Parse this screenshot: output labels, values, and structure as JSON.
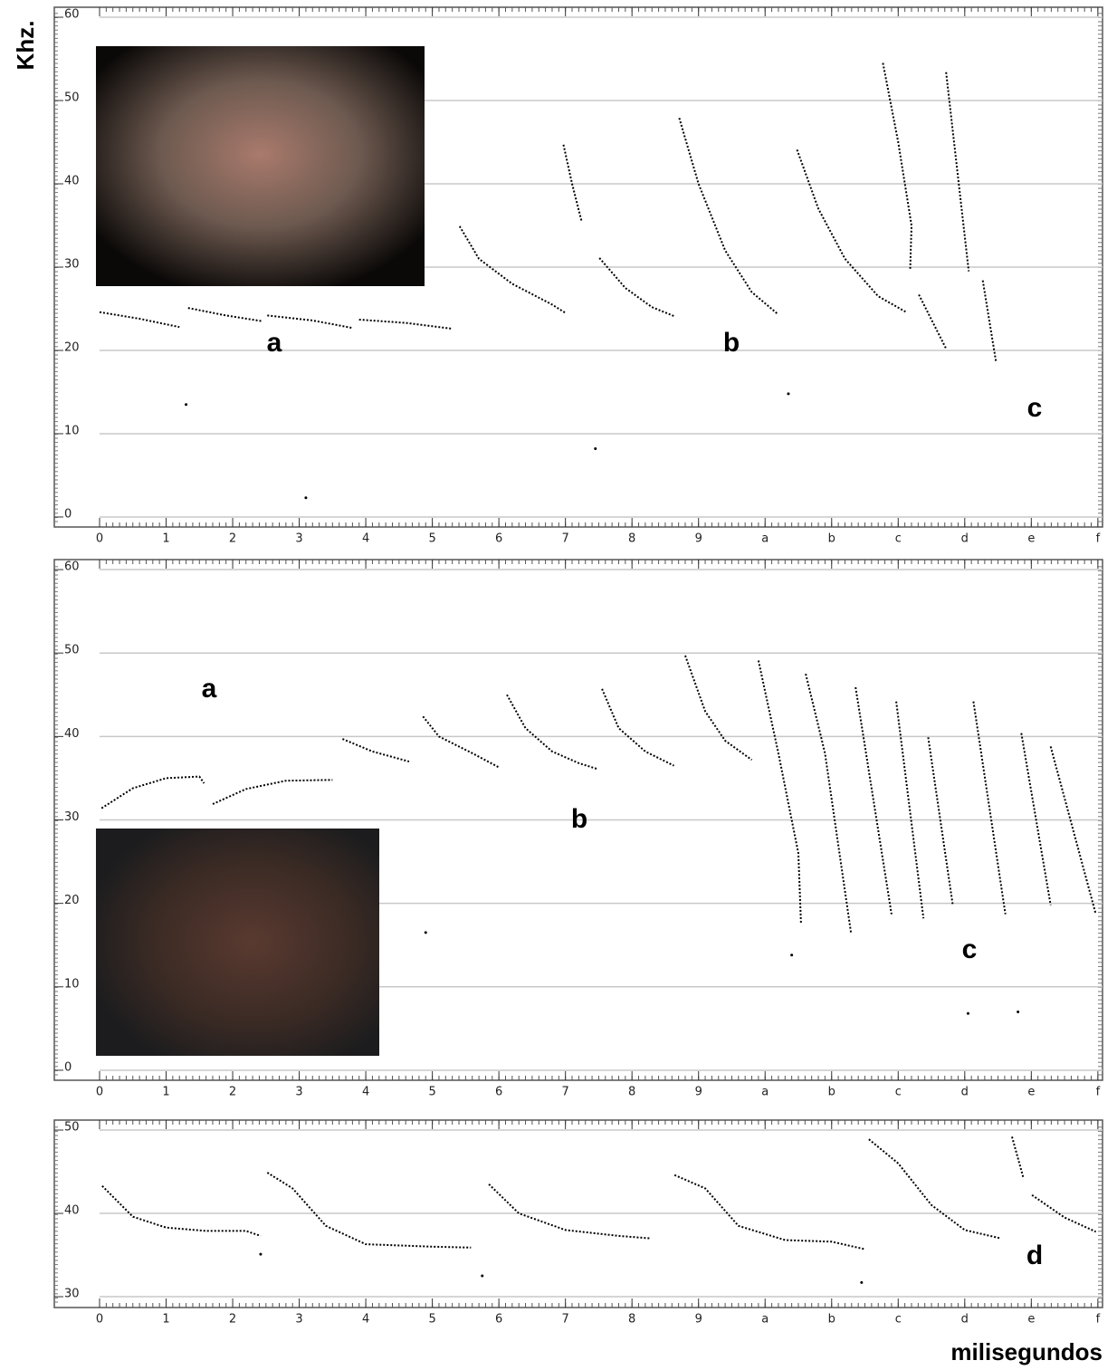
{
  "chart_data": [
    {
      "type": "line",
      "ylabel": "Khz.",
      "color": "#000000",
      "grid": true,
      "xlim": [
        -0.68,
        15.07
      ],
      "ylim": [
        -1.2,
        61.2
      ],
      "xticks": [
        0,
        1,
        2,
        3,
        4,
        5,
        6,
        7,
        8,
        9,
        {
          "value": 10,
          "label": "a"
        },
        {
          "value": 11,
          "label": "b"
        },
        {
          "value": 12,
          "label": "c"
        },
        {
          "value": 13,
          "label": "d"
        },
        {
          "value": 14,
          "label": "e"
        },
        {
          "value": 15,
          "label": "f"
        }
      ],
      "yticks": [
        0,
        10,
        20,
        30,
        40,
        50,
        60
      ],
      "annotations": [
        "a",
        "b",
        "c"
      ],
      "series": [
        {
          "x": [
            0,
            0.6,
            1.2
          ],
          "values": [
            24.6,
            23.8,
            22.8
          ]
        },
        {
          "x": [
            1.33,
            1.9,
            2.45
          ],
          "values": [
            25.1,
            24.2,
            23.5
          ]
        },
        {
          "x": [
            2.52,
            3.2,
            3.8
          ],
          "values": [
            24.2,
            23.6,
            22.7
          ]
        },
        {
          "x": [
            3.9,
            4.6,
            5.3
          ],
          "values": [
            23.7,
            23.3,
            22.6
          ]
        },
        {
          "x": [
            5.41,
            5.7,
            6.2,
            6.8,
            7.0
          ],
          "values": [
            34.9,
            31,
            28,
            25.5,
            24.5
          ]
        },
        {
          "x": [
            6.97,
            7.1,
            7.24
          ],
          "values": [
            44.7,
            40,
            35.6
          ]
        },
        {
          "x": [
            7.51,
            7.9,
            8.3,
            8.64
          ],
          "values": [
            31.1,
            27.5,
            25.2,
            24.1
          ]
        },
        {
          "x": [
            8.71,
            9.0,
            9.4,
            9.8,
            10.2
          ],
          "values": [
            47.9,
            40,
            32,
            27,
            24.3
          ]
        },
        {
          "x": [
            10.48,
            10.8,
            11.2,
            11.7,
            12.12
          ],
          "values": [
            44.1,
            37,
            31,
            26.5,
            24.6
          ]
        },
        {
          "x": [
            11.77,
            12.0,
            12.2,
            12.18
          ],
          "values": [
            54.5,
            45,
            35,
            29.7
          ]
        },
        {
          "x": [
            12.31,
            12.72
          ],
          "values": [
            26.7,
            20.2
          ]
        },
        {
          "x": [
            12.72,
            13.06
          ],
          "values": [
            53.4,
            29.5
          ]
        },
        {
          "x": [
            13.27,
            13.47
          ],
          "values": [
            28.4,
            18.6
          ]
        }
      ],
      "points": {
        "x": [
          1.3,
          3.1,
          7.45,
          10.35
        ],
        "values": [
          13.5,
          2.3,
          8.2,
          14.8
        ]
      }
    },
    {
      "type": "line",
      "color": "#000000",
      "grid": true,
      "xlim": [
        -0.68,
        15.07
      ],
      "ylim": [
        -1.2,
        61.2
      ],
      "xticks": [
        0,
        1,
        2,
        3,
        4,
        5,
        6,
        7,
        8,
        9,
        {
          "value": 10,
          "label": "a"
        },
        {
          "value": 11,
          "label": "b"
        },
        {
          "value": 12,
          "label": "c"
        },
        {
          "value": 13,
          "label": "d"
        },
        {
          "value": 14,
          "label": "e"
        },
        {
          "value": 15,
          "label": "f"
        }
      ],
      "yticks": [
        0,
        10,
        20,
        30,
        40,
        50,
        60
      ],
      "annotations": [
        "a",
        "b",
        "c"
      ],
      "series": [
        {
          "x": [
            0.03,
            0.5,
            1.0,
            1.5,
            1.57
          ],
          "values": [
            31.4,
            33.8,
            35.0,
            35.2,
            34.4
          ]
        },
        {
          "x": [
            1.7,
            2.2,
            2.8,
            3.5
          ],
          "values": [
            31.9,
            33.7,
            34.7,
            34.8
          ]
        },
        {
          "x": [
            3.65,
            4.1,
            4.65
          ],
          "values": [
            39.7,
            38.2,
            37.0
          ]
        },
        {
          "x": [
            4.86,
            5.1,
            5.6,
            6.0
          ],
          "values": [
            42.4,
            40,
            38,
            36.3
          ]
        },
        {
          "x": [
            6.12,
            6.4,
            6.8,
            7.2,
            7.48
          ],
          "values": [
            45,
            41,
            38.2,
            36.8,
            36.1
          ]
        },
        {
          "x": [
            7.55,
            7.8,
            8.2,
            8.63
          ],
          "values": [
            45.7,
            41,
            38.2,
            36.5
          ]
        },
        {
          "x": [
            8.8,
            9.1,
            9.4,
            9.8
          ],
          "values": [
            49.7,
            43,
            39.5,
            37.2
          ]
        },
        {
          "x": [
            9.9,
            10.2,
            10.5,
            10.54
          ],
          "values": [
            49.1,
            38,
            26,
            17.6
          ]
        },
        {
          "x": [
            10.61,
            10.9,
            11.29
          ],
          "values": [
            47.5,
            38,
            16.5
          ]
        },
        {
          "x": [
            11.36,
            11.9
          ],
          "values": [
            45.9,
            18.7
          ]
        },
        {
          "x": [
            11.97,
            12.38
          ],
          "values": [
            44.2,
            18.2
          ]
        },
        {
          "x": [
            12.45,
            12.82
          ],
          "values": [
            39.9,
            19.8
          ]
        },
        {
          "x": [
            13.13,
            13.61
          ],
          "values": [
            44.2,
            18.7
          ]
        },
        {
          "x": [
            13.85,
            14.29
          ],
          "values": [
            40.4,
            19.8
          ]
        },
        {
          "x": [
            14.29,
            14.97
          ],
          "values": [
            38.8,
            18.7
          ]
        }
      ],
      "points": {
        "x": [
          4.9,
          10.4,
          13.05,
          13.8
        ],
        "values": [
          16.5,
          13.8,
          6.8,
          7
        ]
      }
    },
    {
      "type": "line",
      "xlabel": "milisegundos",
      "color": "#000000",
      "grid": true,
      "xlim": [
        -0.68,
        15.07
      ],
      "ylim": [
        28.7,
        51.2
      ],
      "xticks": [
        0,
        1,
        2,
        3,
        4,
        5,
        6,
        7,
        8,
        9,
        {
          "value": 10,
          "label": "a"
        },
        {
          "value": 11,
          "label": "b"
        },
        {
          "value": 12,
          "label": "c"
        },
        {
          "value": 13,
          "label": "d"
        },
        {
          "value": 14,
          "label": "e"
        },
        {
          "value": 15,
          "label": "f"
        }
      ],
      "yticks": [
        30,
        40,
        50
      ],
      "annotations": [
        "d"
      ],
      "series": [
        {
          "x": [
            0.04,
            0.5,
            1.0,
            1.6,
            2.2,
            2.42
          ],
          "values": [
            43.3,
            39.6,
            38.3,
            37.9,
            37.9,
            37.3
          ]
        },
        {
          "x": [
            2.52,
            2.9,
            3.4,
            4.0,
            5.0,
            5.58
          ],
          "values": [
            44.9,
            43,
            38.5,
            36.3,
            36.0,
            35.9
          ]
        },
        {
          "x": [
            5.85,
            6.3,
            7.0,
            7.8,
            8.27
          ],
          "values": [
            43.5,
            40,
            38,
            37.3,
            37.0
          ]
        },
        {
          "x": [
            8.64,
            9.1,
            9.6,
            10.3,
            11.0,
            11.5
          ],
          "values": [
            44.6,
            43,
            38.5,
            36.8,
            36.6,
            35.7
          ]
        },
        {
          "x": [
            11.56,
            12.0,
            12.5,
            13.0,
            13.54
          ],
          "values": [
            48.9,
            46,
            41,
            38,
            37.0
          ]
        },
        {
          "x": [
            13.71,
            13.88
          ],
          "values": [
            49.2,
            44.3
          ]
        },
        {
          "x": [
            14.01,
            14.5,
            14.97
          ],
          "values": [
            42.2,
            39.5,
            37.8
          ]
        }
      ],
      "points": {
        "x": [
          2.42,
          5.75,
          11.45
        ],
        "values": [
          35.1,
          32.5,
          31.7
        ]
      }
    }
  ]
}
